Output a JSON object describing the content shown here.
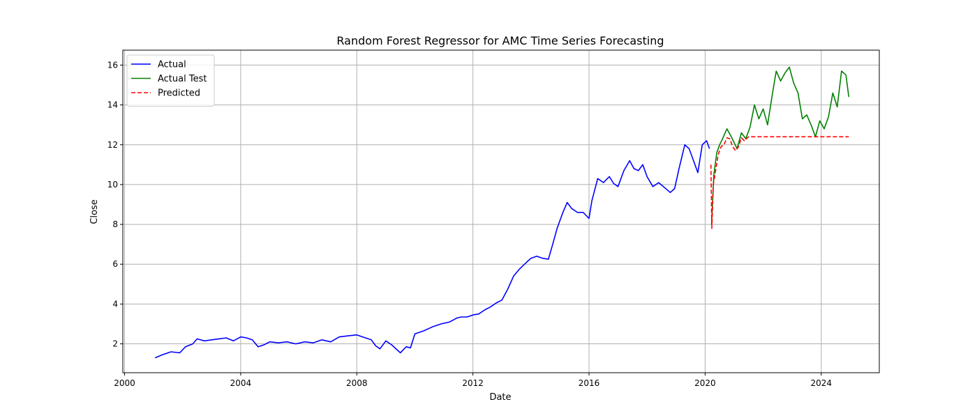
{
  "chart_data": {
    "type": "line",
    "title": "Random Forest Regressor for AMC Time Series Forecasting",
    "xlabel": "Date",
    "ylabel": "Close",
    "xlim": [
      1999.94,
      2026.0
    ],
    "ylim": [
      0.55,
      16.75
    ],
    "x_ticks": [
      2000,
      2004,
      2008,
      2012,
      2016,
      2020,
      2024
    ],
    "y_ticks": [
      2,
      4,
      6,
      8,
      10,
      12,
      14,
      16
    ],
    "grid": true,
    "legend_position": "top-left",
    "series": [
      {
        "name": "Actual",
        "color": "#0000ff",
        "dash": "solid",
        "x": [
          2001.05,
          2001.3,
          2001.6,
          2001.9,
          2002.1,
          2002.35,
          2002.5,
          2002.75,
          2003.0,
          2003.25,
          2003.5,
          2003.75,
          2004.0,
          2004.2,
          2004.4,
          2004.6,
          2004.8,
          2005.0,
          2005.3,
          2005.6,
          2005.9,
          2006.2,
          2006.5,
          2006.8,
          2007.1,
          2007.4,
          2007.7,
          2008.0,
          2008.3,
          2008.5,
          2008.65,
          2008.8,
          2009.0,
          2009.2,
          2009.5,
          2009.7,
          2009.85,
          2010.0,
          2010.3,
          2010.6,
          2010.9,
          2011.2,
          2011.45,
          2011.6,
          2011.8,
          2012.0,
          2012.2,
          2012.4,
          2012.6,
          2012.8,
          2013.0,
          2013.2,
          2013.4,
          2013.6,
          2013.85,
          2014.0,
          2014.2,
          2014.4,
          2014.6,
          2014.75,
          2014.9,
          2015.1,
          2015.25,
          2015.4,
          2015.6,
          2015.8,
          2016.0,
          2016.1,
          2016.3,
          2016.5,
          2016.7,
          2016.85,
          2017.0,
          2017.2,
          2017.4,
          2017.55,
          2017.7,
          2017.85,
          2018.0,
          2018.2,
          2018.4,
          2018.6,
          2018.8,
          2018.95,
          2019.1,
          2019.3,
          2019.45,
          2019.6,
          2019.75,
          2019.9,
          2020.05,
          2020.15
        ],
        "values": [
          1.3,
          1.45,
          1.6,
          1.55,
          1.85,
          2.0,
          2.25,
          2.15,
          2.2,
          2.25,
          2.3,
          2.15,
          2.35,
          2.3,
          2.2,
          1.85,
          1.95,
          2.1,
          2.05,
          2.1,
          2.0,
          2.1,
          2.05,
          2.2,
          2.1,
          2.35,
          2.4,
          2.45,
          2.3,
          2.2,
          1.9,
          1.75,
          2.15,
          1.95,
          1.55,
          1.85,
          1.8,
          2.5,
          2.65,
          2.85,
          3.0,
          3.1,
          3.3,
          3.35,
          3.35,
          3.45,
          3.5,
          3.7,
          3.85,
          4.05,
          4.2,
          4.75,
          5.4,
          5.75,
          6.1,
          6.3,
          6.4,
          6.3,
          6.25,
          7.0,
          7.8,
          8.6,
          9.1,
          8.8,
          8.6,
          8.6,
          8.3,
          9.2,
          10.3,
          10.1,
          10.4,
          10.05,
          9.9,
          10.7,
          11.2,
          10.8,
          10.7,
          11.0,
          10.4,
          9.9,
          10.1,
          9.85,
          9.6,
          9.8,
          10.8,
          12.0,
          11.8,
          11.2,
          10.6,
          12.0,
          12.2,
          11.8
        ]
      },
      {
        "name": "Actual Test",
        "color": "#008000",
        "dash": "solid",
        "x": [
          2020.22,
          2020.3,
          2020.4,
          2020.5,
          2020.6,
          2020.75,
          2020.9,
          2021.1,
          2021.25,
          2021.4,
          2021.55,
          2021.7,
          2021.85,
          2022.0,
          2022.15,
          2022.3,
          2022.45,
          2022.6,
          2022.75,
          2022.9,
          2023.05,
          2023.2,
          2023.35,
          2023.5,
          2023.65,
          2023.8,
          2023.95,
          2024.1,
          2024.25,
          2024.4,
          2024.55,
          2024.7,
          2024.85,
          2024.95
        ],
        "values": [
          8.0,
          10.5,
          11.6,
          12.0,
          12.3,
          12.8,
          12.4,
          11.8,
          12.6,
          12.3,
          12.9,
          14.0,
          13.3,
          13.8,
          13.0,
          14.4,
          15.7,
          15.2,
          15.6,
          15.9,
          15.1,
          14.6,
          13.3,
          13.5,
          13.0,
          12.4,
          13.2,
          12.8,
          13.4,
          14.6,
          13.9,
          15.7,
          15.5,
          14.4
        ]
      },
      {
        "name": "Predicted",
        "color": "#ff0000",
        "dash": "dashed",
        "x": [
          2020.2,
          2020.23,
          2020.28,
          2020.35,
          2020.45,
          2020.55,
          2020.65,
          2020.75,
          2020.85,
          2020.95,
          2021.05,
          2021.15,
          2021.25,
          2021.35,
          2021.5,
          2022.0,
          2023.0,
          2024.0,
          2024.95
        ],
        "values": [
          11.0,
          7.8,
          10.0,
          10.6,
          11.5,
          11.9,
          12.0,
          12.35,
          12.3,
          11.9,
          11.7,
          11.9,
          12.35,
          12.2,
          12.4,
          12.4,
          12.4,
          12.4,
          12.4
        ]
      }
    ]
  }
}
